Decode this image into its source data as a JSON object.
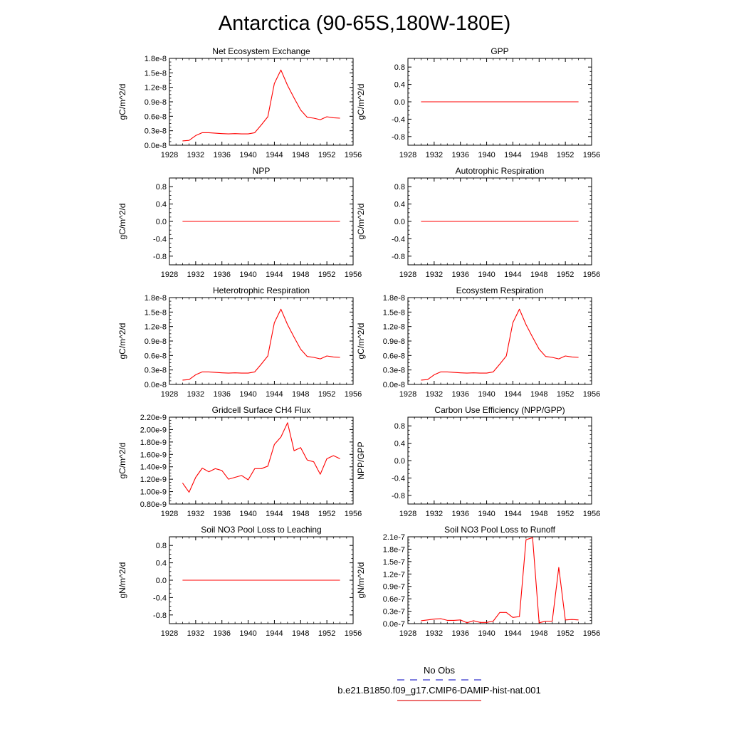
{
  "figure": {
    "title": "Antarctica (90-65S,180W-180E)"
  },
  "legend": {
    "entries": [
      {
        "label": "No Obs",
        "color": "#3333cc",
        "dash": true
      },
      {
        "label": "b.e21.B1850.f09_g17.CMIP6-DAMIP-hist-nat.001",
        "color": "#e21b1b",
        "dash": false
      }
    ]
  },
  "colors": {
    "series": "#ff0000",
    "axis": "#000000"
  },
  "x_axis": {
    "range": [
      1928,
      1956
    ],
    "ticks": [
      1928,
      1932,
      1936,
      1940,
      1944,
      1948,
      1952,
      1956
    ],
    "tick_labels": [
      "1928",
      "1932",
      "1936",
      "1940",
      "1944",
      "1948",
      "1952",
      "1956"
    ]
  },
  "chart_data": [
    {
      "type": "line",
      "title": "Net Ecosystem Exchange",
      "ylabel": "gC/m^2/d",
      "ylim": [
        0,
        1.8e-08
      ],
      "y_ticks": [
        0,
        3e-09,
        6e-09,
        9e-09,
        1.2e-08,
        1.5e-08,
        1.8e-08
      ],
      "y_tick_labels": [
        "0.0e-8",
        "0.3e-8",
        "0.6e-8",
        "0.9e-8",
        "1.2e-8",
        "1.5e-8",
        "1.8e-8"
      ],
      "x": [
        1930,
        1931,
        1932,
        1933,
        1934,
        1935,
        1936,
        1937,
        1938,
        1939,
        1940,
        1941,
        1942,
        1943,
        1944,
        1945,
        1946,
        1947,
        1948,
        1949,
        1950,
        1951,
        1952,
        1953,
        1954
      ],
      "series": [
        {
          "values": [
            9e-10,
            1e-09,
            2e-09,
            2.6e-09,
            2.6e-09,
            2.5e-09,
            2.4e-09,
            2.35e-09,
            2.4e-09,
            2.35e-09,
            2.35e-09,
            2.6e-09,
            4.2e-09,
            5.9e-09,
            1.28e-08,
            1.56e-08,
            1.24e-08,
            9.8e-09,
            7.3e-09,
            5.8e-09,
            5.6e-09,
            5.3e-09,
            5.9e-09,
            5.7e-09,
            5.6e-09
          ]
        }
      ]
    },
    {
      "type": "line",
      "title": "GPP",
      "ylabel": "gC/m^2/d",
      "ylim": [
        -1,
        1
      ],
      "y_ticks": [
        -0.8,
        -0.4,
        0,
        0.4,
        0.8
      ],
      "y_tick_labels": [
        "-0.8",
        "-0.4",
        "0.0",
        "0.4",
        "0.8"
      ],
      "x": [
        1930,
        1954
      ],
      "series": [
        {
          "values": [
            0,
            0
          ]
        }
      ]
    },
    {
      "type": "line",
      "title": "NPP",
      "ylabel": "gC/m^2/d",
      "ylim": [
        -1,
        1
      ],
      "y_ticks": [
        -0.8,
        -0.4,
        0,
        0.4,
        0.8
      ],
      "y_tick_labels": [
        "-0.8",
        "-0.4",
        "0.0",
        "0.4",
        "0.8"
      ],
      "x": [
        1930,
        1954
      ],
      "series": [
        {
          "values": [
            0,
            0
          ]
        }
      ]
    },
    {
      "type": "line",
      "title": "Autotrophic Respiration",
      "ylabel": "gC/m^2/d",
      "ylim": [
        -1,
        1
      ],
      "y_ticks": [
        -0.8,
        -0.4,
        0,
        0.4,
        0.8
      ],
      "y_tick_labels": [
        "-0.8",
        "-0.4",
        "0.0",
        "0.4",
        "0.8"
      ],
      "x": [
        1930,
        1954
      ],
      "series": [
        {
          "values": [
            0,
            0
          ]
        }
      ]
    },
    {
      "type": "line",
      "title": "Heterotrophic Respiration",
      "ylabel": "gC/m^2/d",
      "ylim": [
        0,
        1.8e-08
      ],
      "y_ticks": [
        0,
        3e-09,
        6e-09,
        9e-09,
        1.2e-08,
        1.5e-08,
        1.8e-08
      ],
      "y_tick_labels": [
        "0.0e-8",
        "0.3e-8",
        "0.6e-8",
        "0.9e-8",
        "1.2e-8",
        "1.5e-8",
        "1.8e-8"
      ],
      "x": [
        1930,
        1931,
        1932,
        1933,
        1934,
        1935,
        1936,
        1937,
        1938,
        1939,
        1940,
        1941,
        1942,
        1943,
        1944,
        1945,
        1946,
        1947,
        1948,
        1949,
        1950,
        1951,
        1952,
        1953,
        1954
      ],
      "series": [
        {
          "values": [
            9e-10,
            1e-09,
            2e-09,
            2.6e-09,
            2.6e-09,
            2.5e-09,
            2.4e-09,
            2.35e-09,
            2.4e-09,
            2.35e-09,
            2.35e-09,
            2.6e-09,
            4.2e-09,
            5.9e-09,
            1.28e-08,
            1.56e-08,
            1.24e-08,
            9.8e-09,
            7.3e-09,
            5.8e-09,
            5.6e-09,
            5.3e-09,
            5.9e-09,
            5.7e-09,
            5.6e-09
          ]
        }
      ]
    },
    {
      "type": "line",
      "title": "Ecosystem Respiration",
      "ylabel": "gC/m^2/d",
      "ylim": [
        0,
        1.8e-08
      ],
      "y_ticks": [
        0,
        3e-09,
        6e-09,
        9e-09,
        1.2e-08,
        1.5e-08,
        1.8e-08
      ],
      "y_tick_labels": [
        "0.0e-8",
        "0.3e-8",
        "0.6e-8",
        "0.9e-8",
        "1.2e-8",
        "1.5e-8",
        "1.8e-8"
      ],
      "x": [
        1930,
        1931,
        1932,
        1933,
        1934,
        1935,
        1936,
        1937,
        1938,
        1939,
        1940,
        1941,
        1942,
        1943,
        1944,
        1945,
        1946,
        1947,
        1948,
        1949,
        1950,
        1951,
        1952,
        1953,
        1954
      ],
      "series": [
        {
          "values": [
            9e-10,
            1e-09,
            2e-09,
            2.6e-09,
            2.6e-09,
            2.5e-09,
            2.4e-09,
            2.35e-09,
            2.4e-09,
            2.35e-09,
            2.35e-09,
            2.6e-09,
            4.2e-09,
            5.9e-09,
            1.28e-08,
            1.56e-08,
            1.24e-08,
            9.8e-09,
            7.3e-09,
            5.8e-09,
            5.6e-09,
            5.3e-09,
            5.9e-09,
            5.7e-09,
            5.6e-09
          ]
        }
      ]
    },
    {
      "type": "line",
      "title": "Gridcell Surface CH4 Flux",
      "ylabel": "gC/m^2/d",
      "ylim": [
        8e-10,
        2.2e-09
      ],
      "y_ticks": [
        8e-10,
        1e-09,
        1.2e-09,
        1.4e-09,
        1.6e-09,
        1.8e-09,
        2e-09,
        2.2e-09
      ],
      "y_tick_labels": [
        "0.80e-9",
        "1.00e-9",
        "1.20e-9",
        "1.40e-9",
        "1.60e-9",
        "1.80e-9",
        "2.00e-9",
        "2.20e-9"
      ],
      "x": [
        1930,
        1931,
        1932,
        1933,
        1934,
        1935,
        1936,
        1937,
        1938,
        1939,
        1940,
        1941,
        1942,
        1943,
        1944,
        1945,
        1946,
        1947,
        1948,
        1949,
        1950,
        1951,
        1952,
        1953,
        1954
      ],
      "series": [
        {
          "values": [
            1.14e-09,
            9.9e-10,
            1.23e-09,
            1.38e-09,
            1.32e-09,
            1.37e-09,
            1.34e-09,
            1.2e-09,
            1.23e-09,
            1.26e-09,
            1.19e-09,
            1.37e-09,
            1.37e-09,
            1.41e-09,
            1.76e-09,
            1.88e-09,
            2.11e-09,
            1.66e-09,
            1.71e-09,
            1.51e-09,
            1.48e-09,
            1.28e-09,
            1.53e-09,
            1.58e-09,
            1.53e-09
          ]
        }
      ]
    },
    {
      "type": "line",
      "title": "Carbon Use Efficiency (NPP/GPP)",
      "ylabel": "NPP/GPP",
      "ylim": [
        -1,
        1
      ],
      "y_ticks": [
        -0.8,
        -0.4,
        0,
        0.4,
        0.8
      ],
      "y_tick_labels": [
        "-0.8",
        "-0.4",
        "0.0",
        "0.4",
        "0.8"
      ],
      "x": [],
      "series": [
        {
          "values": []
        }
      ]
    },
    {
      "type": "line",
      "title": "Soil NO3 Pool Loss to Leaching",
      "ylabel": "gN/m^2/d",
      "ylim": [
        -1,
        1
      ],
      "y_ticks": [
        -0.8,
        -0.4,
        0,
        0.4,
        0.8
      ],
      "y_tick_labels": [
        "-0.8",
        "-0.4",
        "0.0",
        "0.4",
        "0.8"
      ],
      "x": [
        1930,
        1954
      ],
      "series": [
        {
          "values": [
            0,
            0
          ]
        }
      ]
    },
    {
      "type": "line",
      "title": "Soil NO3 Pool Loss to Runoff",
      "ylabel": "gN/m^2/d",
      "ylim": [
        0,
        2.1e-07
      ],
      "y_ticks": [
        0,
        3e-08,
        6e-08,
        9e-08,
        1.2e-07,
        1.5e-07,
        1.8e-07,
        2.1e-07
      ],
      "y_tick_labels": [
        "0.0e-7",
        "0.3e-7",
        "0.6e-7",
        "0.9e-7",
        "1.2e-7",
        "1.5e-7",
        "1.8e-7",
        "2.1e-7"
      ],
      "x": [
        1930,
        1931,
        1932,
        1933,
        1934,
        1935,
        1936,
        1937,
        1938,
        1939,
        1940,
        1941,
        1942,
        1943,
        1944,
        1945,
        1946,
        1947,
        1948,
        1949,
        1950,
        1951,
        1952,
        1953,
        1954
      ],
      "series": [
        {
          "values": [
            7e-09,
            9e-09,
            1.1e-08,
            1.2e-08,
            8e-09,
            8e-09,
            9e-09,
            2e-09,
            7e-09,
            3e-09,
            3e-09,
            6e-09,
            2.7e-08,
            2.7e-08,
            1.5e-08,
            1.7e-08,
            2.03e-07,
            2.08e-07,
            2e-09,
            6e-09,
            6e-09,
            1.36e-07,
            9e-09,
            1e-08,
            9e-09
          ]
        }
      ]
    }
  ]
}
